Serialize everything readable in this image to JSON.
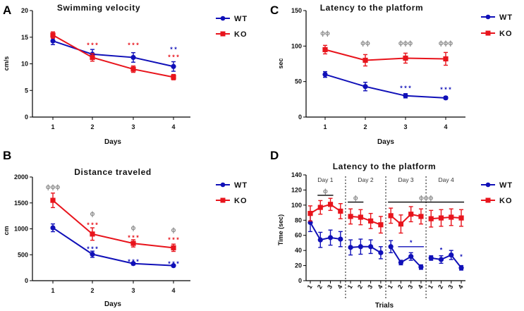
{
  "colors": {
    "wt": "#1010b8",
    "ko": "#e8141c",
    "axis": "#000000",
    "sig": "#888888"
  },
  "chart_data": [
    {
      "id": "A",
      "type": "line",
      "panel_label": "A",
      "title": "Swimming velocity",
      "xlabel": "Days",
      "ylabel": "cm/s",
      "categories": [
        "1",
        "2",
        "3",
        "4"
      ],
      "ylim": [
        0,
        20
      ],
      "yticks": [
        "0",
        "5",
        "10",
        "15",
        "20"
      ],
      "series": [
        {
          "name": "WT",
          "values": [
            14.3,
            11.8,
            11.2,
            9.5
          ],
          "errors": [
            0.7,
            0.9,
            0.9,
            0.9
          ]
        },
        {
          "name": "KO",
          "values": [
            15.4,
            11.2,
            9.0,
            7.5
          ],
          "errors": [
            0.6,
            0.7,
            0.6,
            0.5
          ]
        }
      ],
      "annotations": [
        {
          "series": "KO",
          "x": 1,
          "text": "* * *"
        },
        {
          "series": "KO",
          "x": 2,
          "text": "* * *"
        },
        {
          "series": "WT",
          "x": 3,
          "text": "* *"
        },
        {
          "series": "KO",
          "x": 3,
          "text": "* * *"
        }
      ]
    },
    {
      "id": "B",
      "type": "line",
      "panel_label": "B",
      "title": "Distance traveled",
      "xlabel": "Days",
      "ylabel": "cm",
      "categories": [
        "1",
        "2",
        "3",
        "4"
      ],
      "ylim": [
        0,
        2000
      ],
      "yticks": [
        "0",
        "500",
        "1000",
        "1500",
        "2000"
      ],
      "series": [
        {
          "name": "WT",
          "values": [
            1020,
            510,
            330,
            290
          ],
          "errors": [
            75,
            60,
            25,
            20
          ]
        },
        {
          "name": "KO",
          "values": [
            1550,
            900,
            720,
            635
          ],
          "errors": [
            140,
            120,
            70,
            70
          ]
        }
      ],
      "annotations": [
        {
          "series": "KO",
          "x": 0,
          "text": "ɸɸɸ"
        },
        {
          "series": "KO",
          "x": 1,
          "text": "ɸ"
        },
        {
          "series": "KO",
          "x": 1,
          "text": "* * *"
        },
        {
          "series": "WT",
          "x": 1,
          "text": "* * *"
        },
        {
          "series": "KO",
          "x": 2,
          "text": "ɸ"
        },
        {
          "series": "KO",
          "x": 2,
          "text": "* * *"
        },
        {
          "series": "WT",
          "x": 2,
          "text": "* * *"
        },
        {
          "series": "KO",
          "x": 3,
          "text": "ɸ"
        },
        {
          "series": "KO",
          "x": 3,
          "text": "* * *"
        },
        {
          "series": "WT",
          "x": 3,
          "text": "* * *"
        }
      ]
    },
    {
      "id": "C",
      "type": "line",
      "panel_label": "C",
      "title": "Latency to the platform",
      "xlabel": "Days",
      "ylabel": "sec",
      "categories": [
        "1",
        "2",
        "3",
        "4"
      ],
      "ylim": [
        0,
        150
      ],
      "yticks": [
        "0",
        "50",
        "100",
        "150"
      ],
      "series": [
        {
          "name": "WT",
          "values": [
            60,
            43,
            30,
            27
          ],
          "errors": [
            4,
            6,
            3,
            2
          ]
        },
        {
          "name": "KO",
          "values": [
            95,
            80,
            83,
            82
          ],
          "errors": [
            6,
            8,
            7,
            9
          ]
        }
      ],
      "annotations": [
        {
          "series": "KO",
          "x": 0,
          "text": "ɸɸ"
        },
        {
          "series": "KO",
          "x": 1,
          "text": "ɸɸ"
        },
        {
          "series": "KO",
          "x": 2,
          "text": "ɸɸɸ"
        },
        {
          "series": "KO",
          "x": 3,
          "text": "ɸɸɸ"
        },
        {
          "series": "WT",
          "x": 2,
          "text": "* * *"
        },
        {
          "series": "WT",
          "x": 3,
          "text": "* * *"
        }
      ]
    },
    {
      "id": "D",
      "type": "line",
      "panel_label": "D",
      "title": "Latency to the platform",
      "xlabel": "Trials",
      "ylabel": "Time (sec)",
      "categories": [
        "1",
        "2",
        "3",
        "4",
        "1",
        "2",
        "3",
        "4",
        "1",
        "2",
        "3",
        "4",
        "1",
        "2",
        "3",
        "4"
      ],
      "ylim": [
        0,
        140
      ],
      "yticks": [
        "0",
        "20",
        "40",
        "60",
        "80",
        "100",
        "120",
        "140"
      ],
      "day_labels": [
        "Day 1",
        "Day 2",
        "Day 3",
        "Day 4"
      ],
      "series": [
        {
          "name": "WT",
          "values": [
            77,
            54,
            57,
            55,
            44,
            45,
            45,
            37,
            45,
            24,
            32,
            18,
            30,
            28,
            34,
            17
          ],
          "errors": [
            12,
            10,
            10,
            10,
            10,
            10,
            9,
            8,
            8,
            3,
            5,
            3,
            3,
            5,
            6,
            3
          ]
        },
        {
          "name": "KO",
          "values": [
            89,
            97,
            101,
            92,
            85,
            84,
            79,
            74,
            86,
            75,
            88,
            85,
            82,
            83,
            84,
            83
          ],
          "errors": [
            10,
            9,
            8,
            10,
            10,
            10,
            10,
            11,
            10,
            12,
            10,
            10,
            11,
            11,
            11,
            11
          ]
        }
      ],
      "annotations": [
        {
          "text": "ɸ",
          "bracket": [
            1,
            2
          ],
          "y": 113
        },
        {
          "text": "ɸ",
          "bracket": [
            4,
            5
          ],
          "y": 104
        },
        {
          "text": "ɸɸɸ",
          "bracket": [
            8,
            15
          ],
          "y": 104
        },
        {
          "text": "*",
          "bracket": [
            9,
            11
          ],
          "y": 45
        },
        {
          "text": "*",
          "x": 13,
          "y": 38
        },
        {
          "text": "*",
          "x": 15,
          "y": 29
        }
      ]
    }
  ]
}
